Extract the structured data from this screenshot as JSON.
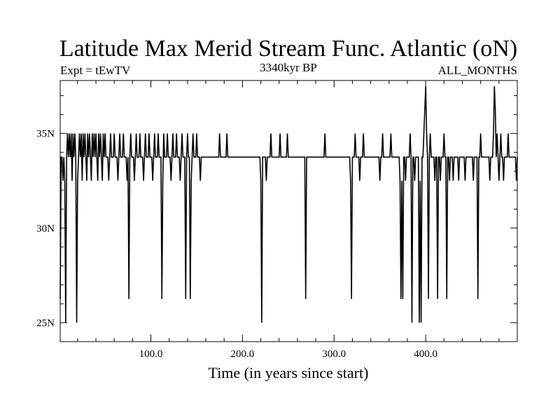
{
  "chart_data": {
    "type": "line",
    "title": "Latitude Max Merid Stream Func. Atlantic (oN)",
    "subtitle_left": "Expt = tEwTV",
    "subtitle_center": "3340kyr BP",
    "subtitle_right": "ALL_MONTHS",
    "xlabel": "Time (in years since start)",
    "ylabel": "",
    "xlim": [
      1,
      500
    ],
    "ylim": [
      24,
      37.8
    ],
    "x_ticks": [
      100,
      200,
      300,
      400
    ],
    "x_tick_labels": [
      "100.0",
      "200.0",
      "300.0",
      "400.0"
    ],
    "y_ticks": [
      25,
      30,
      35
    ],
    "y_tick_labels": [
      "25N",
      "30N",
      "35N"
    ],
    "grid": false,
    "legend": "none",
    "line_color": "#000000",
    "series": [
      {
        "baseline": 33.75,
        "events": [
          [
            1,
            26.25
          ],
          [
            2,
            33.75
          ],
          [
            3,
            33.75
          ],
          [
            4,
            32.5
          ],
          [
            5,
            33.75
          ],
          [
            6,
            32.5
          ],
          [
            7,
            25.0
          ],
          [
            8,
            33.75
          ],
          [
            9,
            35.0
          ],
          [
            10,
            33.75
          ],
          [
            11,
            35.0
          ],
          [
            12,
            33.75
          ],
          [
            13,
            35.0
          ],
          [
            14,
            32.5
          ],
          [
            15,
            35.0
          ],
          [
            16,
            33.75
          ],
          [
            17,
            35.0
          ],
          [
            18,
            33.75
          ],
          [
            19,
            25.0
          ],
          [
            20,
            32.5
          ],
          [
            21,
            33.75
          ],
          [
            22,
            35.0
          ],
          [
            23,
            33.75
          ],
          [
            24,
            35.0
          ],
          [
            25,
            32.5
          ],
          [
            26,
            35.0
          ],
          [
            27,
            33.75
          ],
          [
            28,
            35.0
          ],
          [
            29,
            33.75
          ],
          [
            30,
            32.5
          ],
          [
            31,
            35.0
          ],
          [
            32,
            33.75
          ],
          [
            33,
            35.0
          ],
          [
            34,
            33.75
          ],
          [
            35,
            32.5
          ],
          [
            36,
            35.0
          ],
          [
            37,
            33.75
          ],
          [
            38,
            35.0
          ],
          [
            39,
            33.75
          ],
          [
            40,
            35.0
          ],
          [
            41,
            33.75
          ],
          [
            42,
            32.5
          ],
          [
            43,
            35.0
          ],
          [
            44,
            33.75
          ],
          [
            45,
            35.0
          ],
          [
            46,
            33.75
          ],
          [
            47,
            32.5
          ],
          [
            48,
            35.0
          ],
          [
            49,
            33.75
          ],
          [
            50,
            35.0
          ],
          [
            52,
            33.75
          ],
          [
            54,
            32.5
          ],
          [
            56,
            35.0
          ],
          [
            58,
            33.75
          ],
          [
            60,
            35.0
          ],
          [
            62,
            33.75
          ],
          [
            64,
            32.5
          ],
          [
            66,
            35.0
          ],
          [
            68,
            33.75
          ],
          [
            70,
            35.0
          ],
          [
            72,
            33.75
          ],
          [
            74,
            32.5
          ],
          [
            76,
            26.25
          ],
          [
            77,
            33.75
          ],
          [
            78,
            35.0
          ],
          [
            80,
            33.75
          ],
          [
            82,
            32.5
          ],
          [
            84,
            35.0
          ],
          [
            86,
            33.75
          ],
          [
            88,
            35.0
          ],
          [
            90,
            33.75
          ],
          [
            92,
            32.5
          ],
          [
            94,
            35.0
          ],
          [
            96,
            33.75
          ],
          [
            98,
            35.0
          ],
          [
            100,
            33.75
          ],
          [
            102,
            32.5
          ],
          [
            104,
            35.0
          ],
          [
            106,
            33.75
          ],
          [
            108,
            35.0
          ],
          [
            110,
            33.75
          ],
          [
            112,
            26.25
          ],
          [
            113,
            32.5
          ],
          [
            114,
            35.0
          ],
          [
            116,
            33.75
          ],
          [
            118,
            35.0
          ],
          [
            120,
            33.75
          ],
          [
            122,
            32.5
          ],
          [
            124,
            35.0
          ],
          [
            126,
            33.75
          ],
          [
            128,
            35.0
          ],
          [
            130,
            33.75
          ],
          [
            132,
            32.5
          ],
          [
            134,
            35.0
          ],
          [
            136,
            33.75
          ],
          [
            138,
            26.25
          ],
          [
            139,
            33.75
          ],
          [
            140,
            35.0
          ],
          [
            142,
            33.75
          ],
          [
            143,
            26.25
          ],
          [
            144,
            32.5
          ],
          [
            146,
            35.0
          ],
          [
            148,
            33.75
          ],
          [
            150,
            35.0
          ],
          [
            152,
            33.75
          ],
          [
            154,
            32.5
          ],
          [
            156,
            33.75
          ],
          [
            175,
            35.0
          ],
          [
            176,
            33.75
          ],
          [
            183,
            35.0
          ],
          [
            184,
            33.75
          ],
          [
            220,
            32.5
          ],
          [
            221,
            25.0
          ],
          [
            222,
            33.75
          ],
          [
            226,
            32.5
          ],
          [
            227,
            33.75
          ],
          [
            231,
            35.0
          ],
          [
            232,
            33.75
          ],
          [
            241,
            35.0
          ],
          [
            242,
            33.75
          ],
          [
            249,
            35.0
          ],
          [
            250,
            33.75
          ],
          [
            269,
            26.25
          ],
          [
            270,
            33.75
          ],
          [
            290,
            35.0
          ],
          [
            291,
            33.75
          ],
          [
            318,
            32.5
          ],
          [
            319,
            26.25
          ],
          [
            320,
            33.75
          ],
          [
            323,
            35.0
          ],
          [
            324,
            33.75
          ],
          [
            328,
            32.5
          ],
          [
            329,
            33.75
          ],
          [
            332,
            35.0
          ],
          [
            333,
            33.75
          ],
          [
            350,
            32.5
          ],
          [
            351,
            33.75
          ],
          [
            353,
            35.0
          ],
          [
            354,
            33.75
          ],
          [
            362,
            35.0
          ],
          [
            363,
            33.75
          ],
          [
            372,
            32.5
          ],
          [
            373,
            26.25
          ],
          [
            374,
            32.5
          ],
          [
            375,
            26.25
          ],
          [
            376,
            33.75
          ],
          [
            378,
            32.5
          ],
          [
            379,
            33.75
          ],
          [
            383,
            35.0
          ],
          [
            384,
            33.75
          ],
          [
            385,
            25.0
          ],
          [
            386,
            33.75
          ],
          [
            388,
            32.5
          ],
          [
            389,
            33.75
          ],
          [
            393,
            25.0
          ],
          [
            394,
            32.5
          ],
          [
            395,
            25.0
          ],
          [
            396,
            33.75
          ],
          [
            398,
            35.0
          ],
          [
            399,
            36.25
          ],
          [
            400,
            37.5
          ],
          [
            401,
            35.0
          ],
          [
            402,
            33.75
          ],
          [
            403,
            26.25
          ],
          [
            404,
            33.75
          ],
          [
            405,
            35.0
          ],
          [
            406,
            33.75
          ],
          [
            410,
            32.5
          ],
          [
            411,
            33.75
          ],
          [
            413,
            26.25
          ],
          [
            414,
            33.75
          ],
          [
            416,
            32.5
          ],
          [
            417,
            33.75
          ],
          [
            420,
            35.0
          ],
          [
            421,
            33.75
          ],
          [
            423,
            26.25
          ],
          [
            424,
            33.75
          ],
          [
            426,
            32.5
          ],
          [
            427,
            33.75
          ],
          [
            430,
            32.5
          ],
          [
            431,
            33.75
          ],
          [
            436,
            32.5
          ],
          [
            437,
            33.75
          ],
          [
            443,
            32.5
          ],
          [
            444,
            33.75
          ],
          [
            452,
            32.5
          ],
          [
            453,
            33.75
          ],
          [
            457,
            26.25
          ],
          [
            458,
            33.75
          ],
          [
            460,
            35.0
          ],
          [
            461,
            33.75
          ],
          [
            470,
            32.5
          ],
          [
            471,
            33.75
          ],
          [
            474,
            35.0
          ],
          [
            475,
            37.5
          ],
          [
            476,
            36.25
          ],
          [
            477,
            33.75
          ],
          [
            478,
            35.0
          ],
          [
            479,
            33.75
          ],
          [
            480,
            32.5
          ],
          [
            481,
            33.75
          ],
          [
            482,
            35.0
          ],
          [
            483,
            33.75
          ],
          [
            485,
            32.5
          ],
          [
            486,
            33.75
          ],
          [
            490,
            35.0
          ],
          [
            491,
            33.75
          ],
          [
            496,
            33.75
          ],
          [
            498,
            33.75
          ],
          [
            499,
            32.5
          ],
          [
            500,
            33.75
          ]
        ]
      }
    ]
  }
}
